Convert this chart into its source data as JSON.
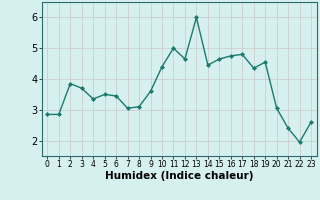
{
  "x": [
    0,
    1,
    2,
    3,
    4,
    5,
    6,
    7,
    8,
    9,
    10,
    11,
    12,
    13,
    14,
    15,
    16,
    17,
    18,
    19,
    20,
    21,
    22,
    23
  ],
  "y": [
    2.85,
    2.85,
    3.85,
    3.7,
    3.35,
    3.5,
    3.45,
    3.05,
    3.1,
    3.6,
    4.4,
    5.0,
    4.65,
    6.0,
    4.45,
    4.65,
    4.75,
    4.8,
    4.35,
    4.55,
    3.05,
    2.4,
    1.95,
    2.6
  ],
  "line_color": "#1a7a6e",
  "marker": "D",
  "marker_size": 2.0,
  "bg_color": "#d6f0f0",
  "grid_color": "#c8c8c8",
  "xlabel": "Humidex (Indice chaleur)",
  "xlim": [
    -0.5,
    23.5
  ],
  "ylim": [
    1.5,
    6.5
  ],
  "yticks": [
    2,
    3,
    4,
    5,
    6
  ],
  "xticks": [
    0,
    1,
    2,
    3,
    4,
    5,
    6,
    7,
    8,
    9,
    10,
    11,
    12,
    13,
    14,
    15,
    16,
    17,
    18,
    19,
    20,
    21,
    22,
    23
  ],
  "xtick_labels": [
    "0",
    "1",
    "2",
    "3",
    "4",
    "5",
    "6",
    "7",
    "8",
    "9",
    "10",
    "11",
    "12",
    "13",
    "14",
    "15",
    "16",
    "17",
    "18",
    "19",
    "20",
    "21",
    "22",
    "23"
  ],
  "spine_color": "#2a6a6a",
  "xlabel_fontsize": 7.5,
  "ytick_fontsize": 7.0,
  "xtick_fontsize": 5.5
}
